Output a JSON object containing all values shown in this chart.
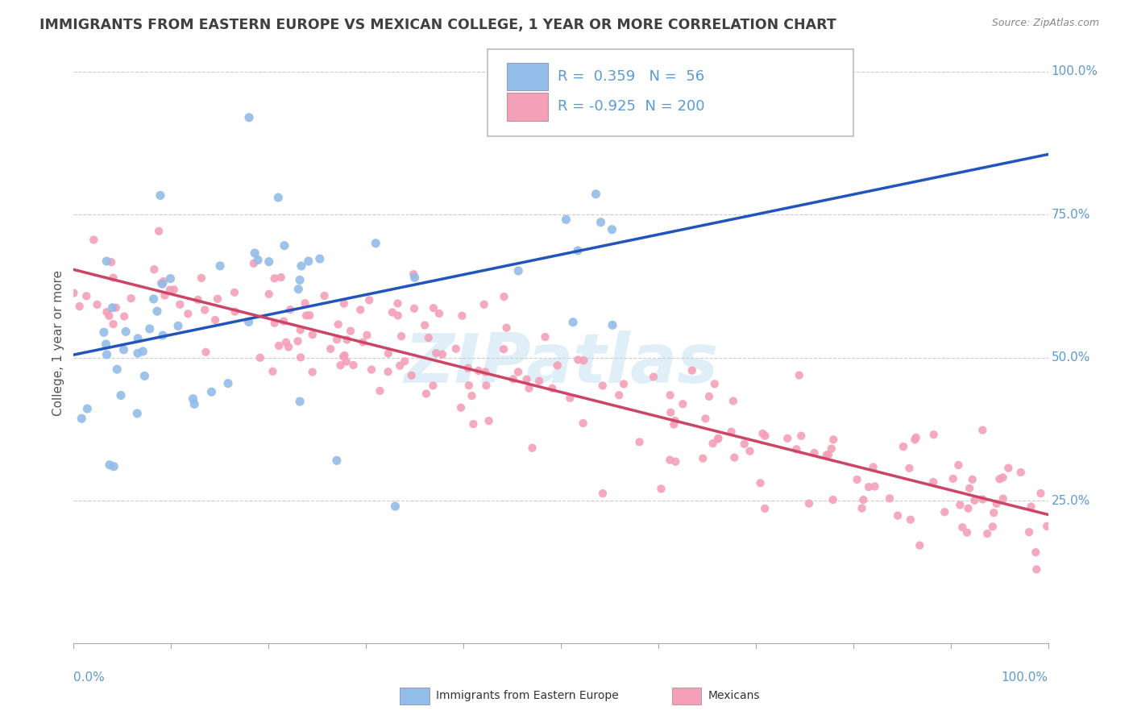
{
  "title": "IMMIGRANTS FROM EASTERN EUROPE VS MEXICAN COLLEGE, 1 YEAR OR MORE CORRELATION CHART",
  "source": "Source: ZipAtlas.com",
  "ylabel": "College, 1 year or more",
  "legend_r_blue": "0.359",
  "legend_n_blue": "56",
  "legend_r_pink": "-0.925",
  "legend_n_pink": "200",
  "blue_color": "#92BDE8",
  "pink_color": "#F4A0B8",
  "blue_line_color": "#2255BB",
  "pink_line_color": "#CC4466",
  "watermark_color": "#BBDDEE",
  "background_color": "#FFFFFF",
  "plot_bg_color": "#FFFFFF",
  "grid_color": "#CCCCCC",
  "title_color": "#404040",
  "axis_label_color": "#5B9BD5",
  "seed": 123,
  "blue_intercept": 0.52,
  "blue_slope": 0.33,
  "pink_intercept": 0.65,
  "pink_slope": -0.42,
  "blue_noise": 0.1,
  "pink_noise": 0.055
}
